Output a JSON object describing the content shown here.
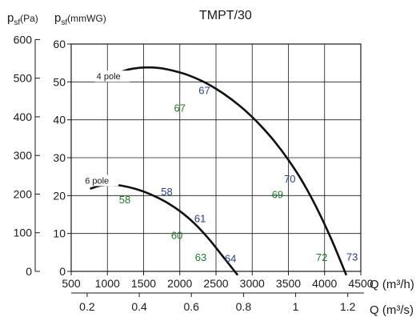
{
  "chart_data": {
    "type": "line",
    "title": "TMPT/30",
    "y_label_left": {
      "symbol": "p",
      "sub": "sf",
      "unit": "(Pa)"
    },
    "y_label_right": {
      "symbol": "p",
      "sub": "sf",
      "unit": "(mmWG)"
    },
    "x_label_top": "Q (m³/h)",
    "x_label_bottom": "Q (m³/s)",
    "x_top_ticks": [
      500,
      1000,
      1500,
      2000,
      2500,
      3000,
      3500,
      4000,
      4500
    ],
    "x_top_range": [
      500,
      4500
    ],
    "x_bottom_ticks": [
      {
        "value": 0.2,
        "label": "0.2"
      },
      {
        "value": 0.4,
        "label": "0.4"
      },
      {
        "value": 0.6,
        "label": "0.6"
      },
      {
        "value": 0.8,
        "label": "0.8"
      },
      {
        "value": 1.0,
        "label": "1"
      },
      {
        "value": 1.2,
        "label": "1.2"
      }
    ],
    "y_pa_ticks": [
      0,
      100,
      200,
      300,
      400,
      500,
      600
    ],
    "y_mmwg_ticks": [
      0,
      10,
      20,
      30,
      40,
      50,
      60
    ],
    "y_mmwg_range": [
      0,
      60
    ],
    "grid": true,
    "series": [
      {
        "name": "4 pole",
        "x": [
          1100,
          1300,
          1500,
          1700,
          1900,
          2100,
          2300,
          2500,
          2700,
          2900,
          3100,
          3300,
          3500,
          3700,
          3900,
          4100,
          4300
        ],
        "y": [
          52,
          53.3,
          53.8,
          53.7,
          53,
          51.9,
          50.3,
          48.2,
          45.6,
          42.5,
          38.8,
          34.5,
          29.4,
          23.5,
          16.4,
          8.2,
          -1
        ]
      },
      {
        "name": "6 pole",
        "x": [
          760,
          900,
          1050,
          1200,
          1400,
          1600,
          1800,
          2000,
          2200,
          2400,
          2600,
          2800
        ],
        "y": [
          21.8,
          22.6,
          22.8,
          22.6,
          21.7,
          20.3,
          18.4,
          15.9,
          12.7,
          8.6,
          3.8,
          -1
        ]
      }
    ],
    "annotations": [
      {
        "text": "67",
        "color": "#2b3a8c",
        "x": 2340,
        "y": 46.8
      },
      {
        "text": "67",
        "color": "#1e7a2e",
        "x": 2000,
        "y": 42.2
      },
      {
        "text": "70",
        "color": "#2b3a8c",
        "x": 3520,
        "y": 23.4
      },
      {
        "text": "69",
        "color": "#1e7a2e",
        "x": 3350,
        "y": 19.3
      },
      {
        "text": "58",
        "color": "#2b3a8c",
        "x": 1820,
        "y": 20.1
      },
      {
        "text": "58",
        "color": "#1e7a2e",
        "x": 1240,
        "y": 18.0
      },
      {
        "text": "61",
        "color": "#2b3a8c",
        "x": 2280,
        "y": 13.0
      },
      {
        "text": "60",
        "color": "#1e7a2e",
        "x": 1960,
        "y": 8.6
      },
      {
        "text": "63",
        "color": "#1e7a2e",
        "x": 2290,
        "y": 2.7
      },
      {
        "text": "64",
        "color": "#2b3a8c",
        "x": 2700,
        "y": 2.4
      },
      {
        "text": "72",
        "color": "#1e7a2e",
        "x": 3960,
        "y": 2.7
      },
      {
        "text": "73",
        "color": "#2b3a8c",
        "x": 4380,
        "y": 2.9
      }
    ]
  }
}
